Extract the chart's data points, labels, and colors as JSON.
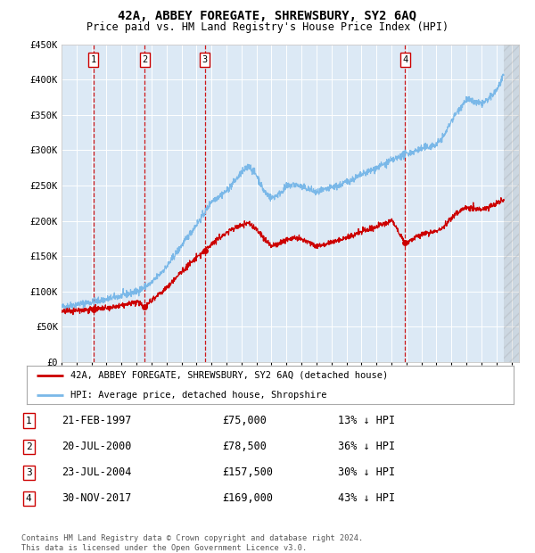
{
  "title": "42A, ABBEY FOREGATE, SHREWSBURY, SY2 6AQ",
  "subtitle": "Price paid vs. HM Land Registry's House Price Index (HPI)",
  "bg_color": "#dce9f5",
  "hpi_color": "#7ab8e8",
  "price_color": "#cc0000",
  "vline_color": "#cc0000",
  "ylim": [
    0,
    450000
  ],
  "yticks": [
    0,
    50000,
    100000,
    150000,
    200000,
    250000,
    300000,
    350000,
    400000,
    450000
  ],
  "ytick_labels": [
    "£0",
    "£50K",
    "£100K",
    "£150K",
    "£200K",
    "£250K",
    "£300K",
    "£350K",
    "£400K",
    "£450K"
  ],
  "xmin": 1995.0,
  "xmax": 2025.5,
  "sales": [
    {
      "label": "1",
      "date_str": "21-FEB-1997",
      "year": 1997.12,
      "price": 75000,
      "pct": "13%"
    },
    {
      "label": "2",
      "date_str": "20-JUL-2000",
      "year": 2000.55,
      "price": 78500,
      "pct": "36%"
    },
    {
      "label": "3",
      "date_str": "23-JUL-2004",
      "year": 2004.55,
      "price": 157500,
      "pct": "30%"
    },
    {
      "label": "4",
      "date_str": "30-NOV-2017",
      "year": 2017.91,
      "price": 169000,
      "pct": "43%"
    }
  ],
  "legend_label_red": "42A, ABBEY FOREGATE, SHREWSBURY, SY2 6AQ (detached house)",
  "legend_label_blue": "HPI: Average price, detached house, Shropshire",
  "footer": "Contains HM Land Registry data © Crown copyright and database right 2024.\nThis data is licensed under the Open Government Licence v3.0.",
  "hatch_region_start": 2024.5,
  "hpi_anchors": [
    [
      1995.0,
      78000
    ],
    [
      1996.0,
      82000
    ],
    [
      1997.0,
      85000
    ],
    [
      1998.0,
      89000
    ],
    [
      1999.0,
      94000
    ],
    [
      2000.0,
      100000
    ],
    [
      2001.0,
      112000
    ],
    [
      2002.0,
      135000
    ],
    [
      2003.0,
      165000
    ],
    [
      2004.0,
      195000
    ],
    [
      2004.5,
      210000
    ],
    [
      2005.0,
      228000
    ],
    [
      2006.0,
      242000
    ],
    [
      2007.0,
      268000
    ],
    [
      2007.5,
      278000
    ],
    [
      2008.0,
      265000
    ],
    [
      2008.5,
      242000
    ],
    [
      2009.0,
      232000
    ],
    [
      2009.5,
      238000
    ],
    [
      2010.0,
      248000
    ],
    [
      2010.5,
      252000
    ],
    [
      2011.0,
      248000
    ],
    [
      2011.5,
      245000
    ],
    [
      2012.0,
      240000
    ],
    [
      2012.5,
      243000
    ],
    [
      2013.0,
      247000
    ],
    [
      2013.5,
      250000
    ],
    [
      2014.0,
      255000
    ],
    [
      2014.5,
      260000
    ],
    [
      2015.0,
      265000
    ],
    [
      2015.5,
      270000
    ],
    [
      2016.0,
      275000
    ],
    [
      2016.5,
      280000
    ],
    [
      2017.0,
      285000
    ],
    [
      2017.5,
      290000
    ],
    [
      2018.0,
      295000
    ],
    [
      2018.5,
      298000
    ],
    [
      2019.0,
      302000
    ],
    [
      2019.5,
      305000
    ],
    [
      2020.0,
      308000
    ],
    [
      2020.5,
      320000
    ],
    [
      2021.0,
      342000
    ],
    [
      2021.5,
      358000
    ],
    [
      2022.0,
      372000
    ],
    [
      2022.5,
      368000
    ],
    [
      2023.0,
      365000
    ],
    [
      2023.5,
      372000
    ],
    [
      2024.0,
      385000
    ],
    [
      2024.5,
      405000
    ]
  ],
  "price_anchors": [
    [
      1995.0,
      72000
    ],
    [
      1996.0,
      73500
    ],
    [
      1997.12,
      75000
    ],
    [
      1998.0,
      76000
    ],
    [
      1999.0,
      80000
    ],
    [
      2000.0,
      85000
    ],
    [
      2000.55,
      78500
    ],
    [
      2001.0,
      88000
    ],
    [
      2002.0,
      105000
    ],
    [
      2003.0,
      128000
    ],
    [
      2004.0,
      148000
    ],
    [
      2004.55,
      157500
    ],
    [
      2005.0,
      168000
    ],
    [
      2006.0,
      183000
    ],
    [
      2006.5,
      190000
    ],
    [
      2007.0,
      194000
    ],
    [
      2007.5,
      197000
    ],
    [
      2008.0,
      188000
    ],
    [
      2008.5,
      175000
    ],
    [
      2009.0,
      164000
    ],
    [
      2009.5,
      168000
    ],
    [
      2010.0,
      174000
    ],
    [
      2010.5,
      176000
    ],
    [
      2011.0,
      173000
    ],
    [
      2011.5,
      170000
    ],
    [
      2012.0,
      164000
    ],
    [
      2012.5,
      167000
    ],
    [
      2013.0,
      170000
    ],
    [
      2013.5,
      173000
    ],
    [
      2014.0,
      176000
    ],
    [
      2014.5,
      180000
    ],
    [
      2015.0,
      185000
    ],
    [
      2015.5,
      188000
    ],
    [
      2016.0,
      192000
    ],
    [
      2016.5,
      196000
    ],
    [
      2017.0,
      201000
    ],
    [
      2017.91,
      169000
    ],
    [
      2018.5,
      175000
    ],
    [
      2019.0,
      180000
    ],
    [
      2019.5,
      183000
    ],
    [
      2020.0,
      186000
    ],
    [
      2020.5,
      192000
    ],
    [
      2021.0,
      204000
    ],
    [
      2021.5,
      213000
    ],
    [
      2022.0,
      220000
    ],
    [
      2022.5,
      218000
    ],
    [
      2023.0,
      215000
    ],
    [
      2023.5,
      220000
    ],
    [
      2024.0,
      225000
    ],
    [
      2024.5,
      230000
    ]
  ]
}
